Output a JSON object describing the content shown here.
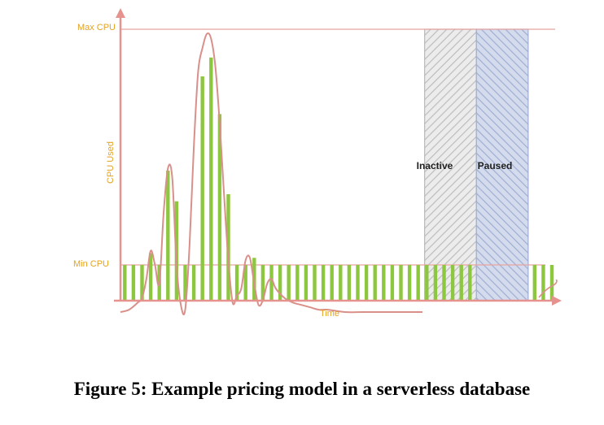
{
  "chart_data": {
    "type": "bar",
    "title": "",
    "xlabel": "Time",
    "ylabel": "CPU Used",
    "y_markers": [
      {
        "label": "Max CPU",
        "value": 1.0
      },
      {
        "label": "Min CPU",
        "value": 0.0
      }
    ],
    "regions": [
      {
        "label": "Inactive",
        "x_range": [
          70.5,
          82.5
        ],
        "fill": "hatched-gray"
      },
      {
        "label": "Paused",
        "x_range": [
          82.5,
          94.5
        ],
        "fill": "hatched-blue"
      }
    ],
    "bar_positions": [
      1,
      3,
      5,
      7,
      9,
      11,
      13,
      15,
      17,
      19,
      21,
      23,
      25,
      27,
      29,
      31,
      33,
      35,
      37,
      39,
      41,
      43,
      45,
      47,
      49,
      51,
      53,
      55,
      57,
      59,
      61,
      63,
      65,
      67,
      69,
      71,
      73,
      75,
      77,
      79,
      81,
      96,
      98,
      100
    ],
    "bar_values": [
      0,
      0,
      0,
      0.05,
      0,
      0.4,
      0.27,
      0,
      0,
      0.8,
      0.88,
      0.64,
      0.3,
      0,
      0,
      0.03,
      0,
      0,
      0,
      0,
      0,
      0,
      0,
      0,
      0,
      0,
      0,
      0,
      0,
      0,
      0,
      0,
      0,
      0,
      0,
      0,
      0,
      0,
      0,
      0,
      0,
      0,
      0,
      0
    ],
    "curve": {
      "x": [
        0,
        2,
        4,
        5,
        6,
        7,
        8,
        9,
        10,
        11,
        12,
        13,
        14,
        15,
        16,
        17,
        18,
        19,
        20,
        21,
        22,
        23,
        24,
        25,
        26,
        27,
        28,
        29,
        30,
        31,
        32,
        33,
        34,
        35,
        36,
        38,
        40,
        42,
        44,
        46,
        48,
        52,
        56,
        60,
        64,
        68,
        70
      ],
      "y": [
        -0.2,
        -0.19,
        -0.16,
        -0.14,
        -0.06,
        0.06,
        0.0,
        -0.08,
        0.22,
        0.41,
        0.37,
        0.0,
        -0.17,
        -0.19,
        0.08,
        0.5,
        0.82,
        0.92,
        0.98,
        0.96,
        0.84,
        0.6,
        0.3,
        0.02,
        -0.16,
        -0.13,
        -0.1,
        0.02,
        0.03,
        -0.08,
        -0.17,
        -0.15,
        -0.08,
        -0.06,
        -0.1,
        -0.14,
        -0.16,
        -0.17,
        -0.18,
        -0.19,
        -0.19,
        -0.2,
        -0.2,
        -0.2,
        -0.2,
        -0.2,
        -0.2
      ]
    },
    "colors": {
      "bars": "#8dc63f",
      "curve": "#d9908a",
      "axis": "#e6928e",
      "max_line": "#e8a5a2",
      "label": "#e4a320",
      "inactive": "#d0d0d0",
      "paused": "#aab7d6"
    }
  },
  "caption": "Figure 5: Example pricing model in a serverless database"
}
